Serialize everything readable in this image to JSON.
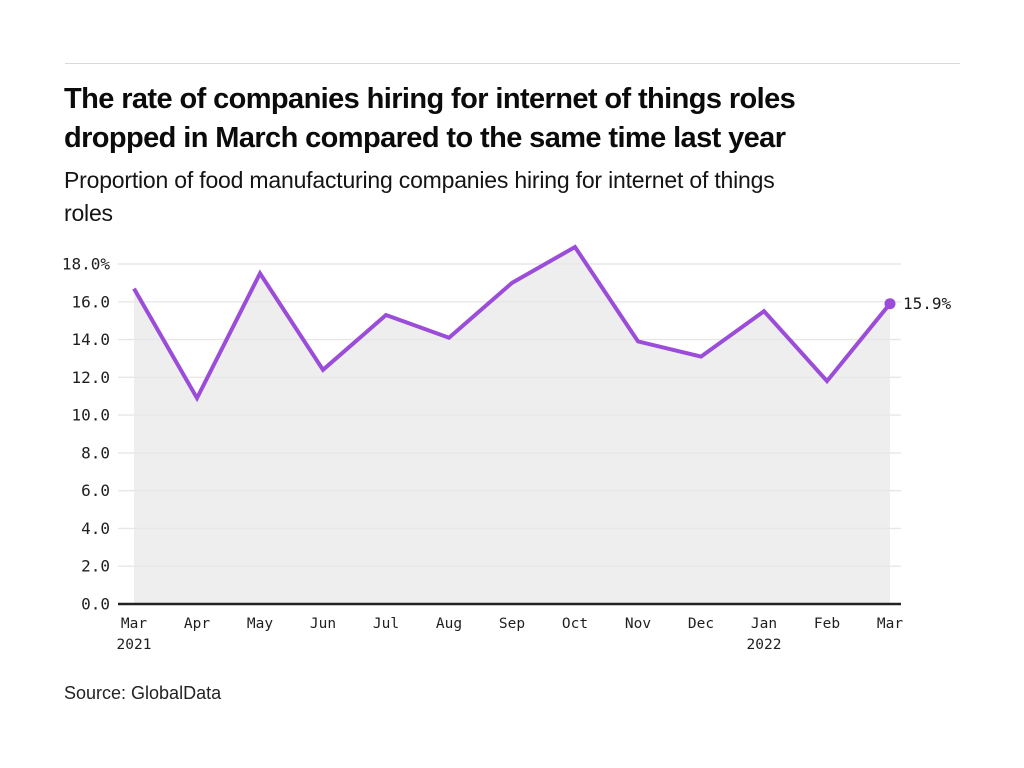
{
  "header": {
    "title": "The rate of companies hiring for internet of things roles\ndropped in March compared to the same time last year",
    "subtitle": "Proportion of food manufacturing companies hiring for internet of things\nroles"
  },
  "source": "Source: GlobalData",
  "chart_data": {
    "type": "area",
    "title": "Proportion of food manufacturing companies hiring for internet of things roles",
    "categories": [
      "Mar",
      "Apr",
      "May",
      "Jun",
      "Jul",
      "Aug",
      "Sep",
      "Oct",
      "Nov",
      "Dec",
      "Jan",
      "Feb",
      "Mar"
    ],
    "year_labels": [
      {
        "index": 0,
        "label": "2021"
      },
      {
        "index": 10,
        "label": "2022"
      }
    ],
    "series": [
      {
        "name": "Proportion of companies hiring for internet of things roles (%)",
        "values": [
          16.7,
          10.9,
          17.5,
          12.4,
          15.3,
          14.1,
          17.0,
          18.9,
          13.9,
          13.1,
          15.5,
          11.8,
          15.9
        ]
      }
    ],
    "end_point_label": "15.9%",
    "xlabel": "",
    "ylabel": "",
    "ylim": [
      0,
      18
    ],
    "ytick_step": 2,
    "ytick_labels": [
      "0.0",
      "2.0",
      "4.0",
      "6.0",
      "8.0",
      "10.0",
      "12.0",
      "14.0",
      "16.0",
      "18.0%"
    ],
    "grid": "horizontal",
    "legend_position": "none",
    "colors": {
      "line": "#9B4DD9",
      "marker": "#9B4DD9",
      "area_fill": "#EEEEEE",
      "gridline": "#E7E7E7",
      "axis": "#222222"
    }
  }
}
